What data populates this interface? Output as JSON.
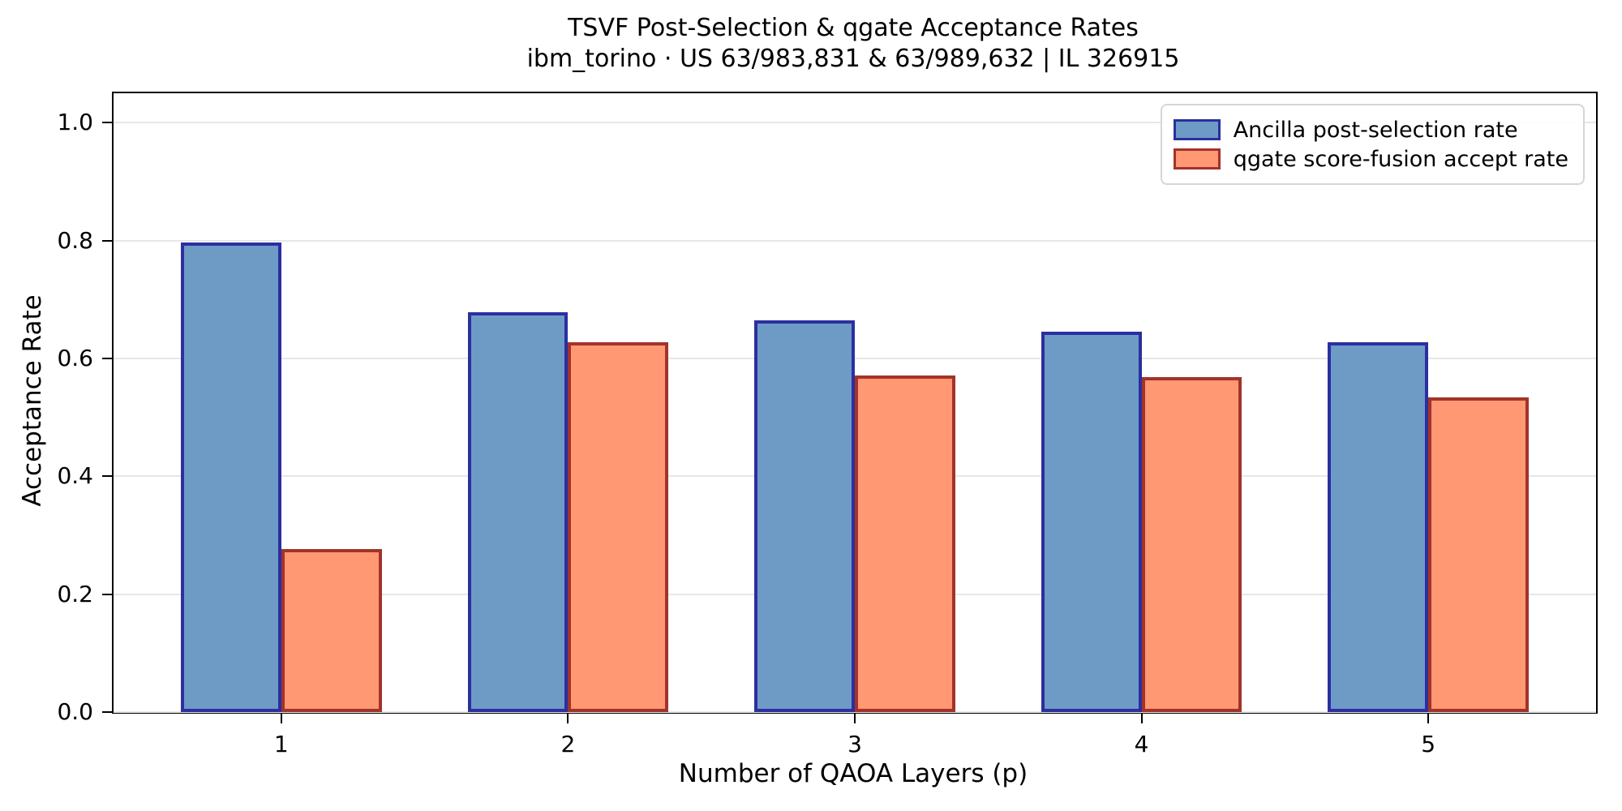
{
  "chart_data": {
    "type": "bar",
    "title": "TSVF Post-Selection & qgate Acceptance Rates",
    "subtitle": "ibm_torino · US 63/983,831 & 63/989,632 | IL 326915",
    "xlabel": "Number of QAOA Layers (p)",
    "ylabel": "Acceptance Rate",
    "categories": [
      "1",
      "2",
      "3",
      "4",
      "5"
    ],
    "series": [
      {
        "name": "Ancilla post-selection rate",
        "fill_color": "#6D9BC5",
        "edge_color": "#2B2FA0",
        "values": [
          0.797,
          0.679,
          0.665,
          0.646,
          0.627
        ]
      },
      {
        "name": "qgate score-fusion accept rate",
        "fill_color": "#FF9873",
        "edge_color": "#A2332A",
        "values": [
          0.276,
          0.628,
          0.571,
          0.569,
          0.534
        ]
      }
    ],
    "ylim": [
      0,
      1.05
    ],
    "yticks": [
      0.0,
      0.2,
      0.4,
      0.6,
      0.8,
      1.0
    ],
    "ytick_labels": [
      "0.0",
      "0.2",
      "0.4",
      "0.6",
      "0.8",
      "1.0"
    ],
    "xlim": [
      0.415,
      5.585
    ],
    "bar_width": 0.35,
    "grid": "horizontal",
    "gridline_color": "#e7e7e7",
    "legend_position": "upper right"
  }
}
